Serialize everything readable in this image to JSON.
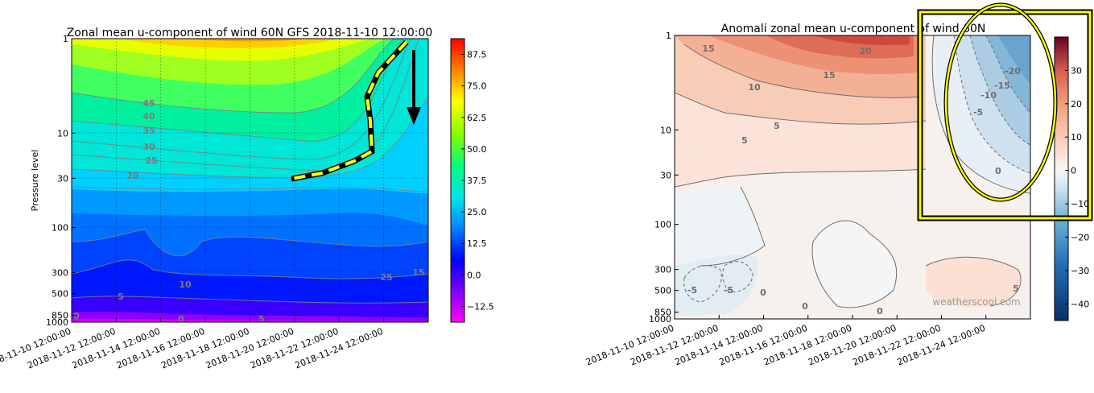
{
  "chart_data": [
    {
      "type": "heatmap",
      "title": "Zonal mean u-component of wind 60N GFS 2018-11-10 12:00:00",
      "ylabel": "Pressure level",
      "xlabel": "",
      "y_scale": "log",
      "y_inverted": true,
      "y_ticks": [
        "1",
        "10",
        "30",
        "100",
        "300",
        "500",
        "850",
        "1000"
      ],
      "y_tick_values": [
        1,
        10,
        30,
        100,
        300,
        500,
        850,
        1000
      ],
      "x_ticks": [
        "2018-11-10 12:00:00",
        "2018-11-12 12:00:00",
        "2018-11-14 12:00:00",
        "2018-11-16 12:00:00",
        "2018-11-18 12:00:00",
        "2018-11-20 12:00:00",
        "2018-11-22 12:00:00",
        "2018-11-24 12:00:00"
      ],
      "grid": true,
      "colorbar_ticks": [
        "87.5",
        "75.0",
        "62.5",
        "50.0",
        "37.5",
        "25.0",
        "12.5",
        "0.0",
        "−12.5"
      ],
      "colorbar_values": [
        87.5,
        75.0,
        62.5,
        50.0,
        37.5,
        25.0,
        12.5,
        0.0,
        -12.5
      ],
      "colorbar_range": [
        -18.75,
        93.75
      ],
      "contour_labels": [
        "45",
        "40",
        "35",
        "30",
        "25",
        "20",
        "10",
        "5",
        "0",
        "5",
        "0",
        "25",
        "15"
      ],
      "annotation": "dashed arrow tracing the weakening wind descending from 1 hPa to 30 hPa"
    },
    {
      "type": "heatmap",
      "title": "Anomali zonal mean u-component of wind 60N",
      "y_scale": "log",
      "y_inverted": true,
      "y_ticks": [
        "1",
        "10",
        "30",
        "100",
        "300",
        "500",
        "850",
        "1000"
      ],
      "y_tick_values": [
        1,
        10,
        30,
        100,
        300,
        500,
        850,
        1000
      ],
      "x_ticks": [
        "2018-11-10 12:00:00",
        "2018-11-12 12:00:00",
        "2018-11-14 12:00:00",
        "2018-11-16 12:00:00",
        "2018-11-18 12:00:00",
        "2018-11-20 12:00:00",
        "2018-11-22 12:00:00",
        "2018-11-24 12:00:00"
      ],
      "grid": false,
      "colorbar_ticks": [
        "30",
        "20",
        "10",
        "0",
        "−10",
        "−20",
        "−30",
        "−40"
      ],
      "colorbar_values": [
        30,
        20,
        10,
        0,
        -10,
        -20,
        -30,
        -40
      ],
      "colorbar_range": [
        -45,
        40
      ],
      "contour_labels": [
        "15",
        "20",
        "15",
        "10",
        "5",
        "5",
        "-5",
        "-10",
        "-15",
        "-20",
        "0",
        "-5",
        "-5",
        "0",
        "0",
        "0",
        "5"
      ],
      "watermark": "weatherscool.com",
      "annotation": "yellow ellipse and box highlighting negative anomaly in upper stratosphere"
    }
  ],
  "colors": {
    "highlight": "#ffff00",
    "highlight_outline": "#000000",
    "anomaly_warm": "#c0392b",
    "anomaly_cold": "#2b6fb0"
  }
}
